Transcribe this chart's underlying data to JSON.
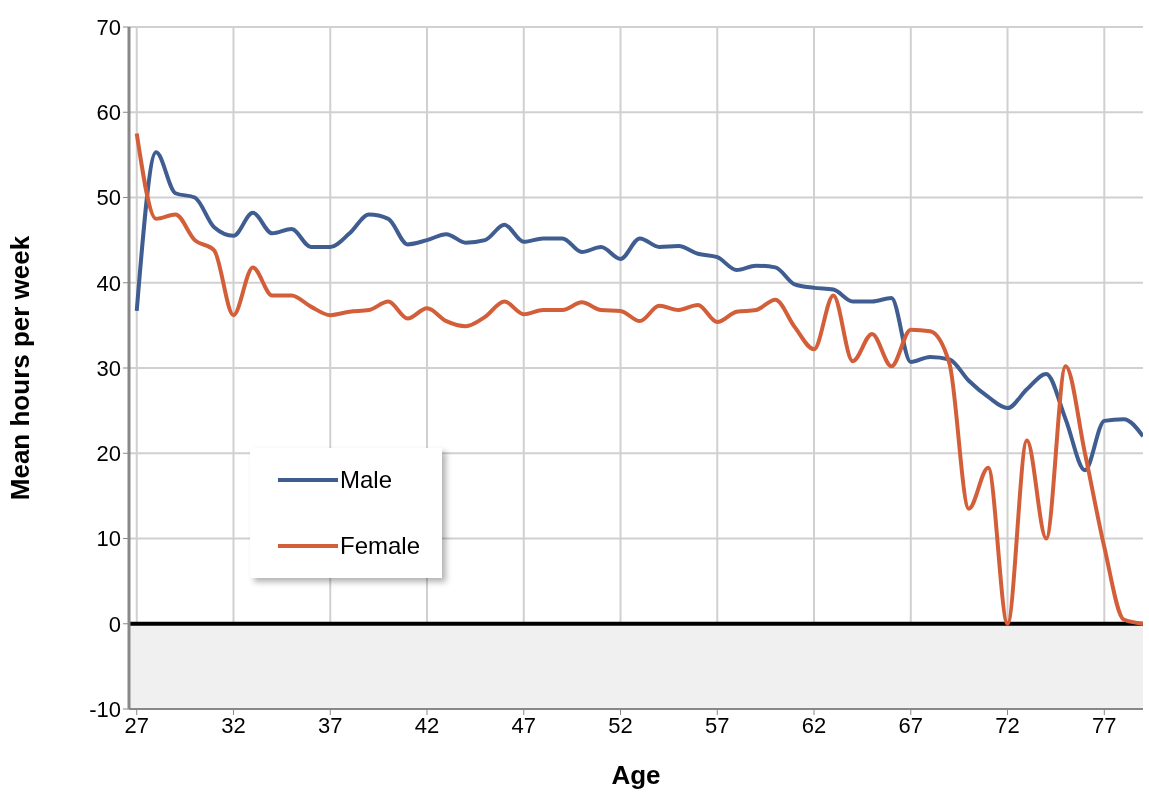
{
  "chart_data": {
    "type": "line",
    "xlabel": "Age",
    "ylabel": "Mean hours per week",
    "x": [
      27,
      28,
      29,
      30,
      31,
      32,
      33,
      34,
      35,
      36,
      37,
      38,
      39,
      40,
      41,
      42,
      43,
      44,
      45,
      46,
      47,
      48,
      49,
      50,
      51,
      52,
      53,
      54,
      55,
      56,
      57,
      58,
      59,
      60,
      61,
      62,
      63,
      64,
      65,
      66,
      67,
      68,
      69,
      70,
      71,
      72,
      73,
      74,
      75,
      76,
      77,
      78,
      79
    ],
    "series": [
      {
        "name": "Male",
        "color": "#3f5d91",
        "values": [
          36.7,
          55.3,
          50.5,
          50,
          46.5,
          45.5,
          48.2,
          45.8,
          46.3,
          44.2,
          44.2,
          45.8,
          48,
          47.5,
          44.5,
          45,
          45.7,
          44.7,
          45,
          46.8,
          44.8,
          45.2,
          45.2,
          43.6,
          44.2,
          42.8,
          45.2,
          44.2,
          44.3,
          43.4,
          43,
          41.5,
          42,
          41.8,
          39.8,
          39.4,
          39.2,
          37.8,
          37.8,
          38.2,
          30.7,
          31.3,
          31,
          28.5,
          26.6,
          25.3,
          27.5,
          29.3,
          24,
          18,
          23.8,
          24,
          22
        ]
      },
      {
        "name": "Female",
        "color": "#d35f3a",
        "values": [
          57.5,
          47.5,
          48,
          45,
          43.8,
          36.2,
          41.8,
          38.5,
          38.5,
          37.2,
          36.2,
          36.6,
          36.8,
          37.8,
          35.8,
          37,
          35.5,
          34.9,
          36,
          37.8,
          36.3,
          36.8,
          36.8,
          37.7,
          36.8,
          36.7,
          35.5,
          37.3,
          36.8,
          37.4,
          35.4,
          36.6,
          36.8,
          38,
          34.8,
          32.2,
          38.5,
          30.8,
          34,
          30.2,
          34.5,
          34.3,
          30.5,
          13.5,
          18.3,
          0,
          21.5,
          10,
          30.2,
          20,
          9,
          0.5,
          0
        ]
      }
    ],
    "xlim": [
      26.6,
      79
    ],
    "xticks": [
      27,
      32,
      37,
      42,
      47,
      52,
      57,
      62,
      67,
      72,
      77
    ],
    "ylim": [
      -10,
      70
    ],
    "yticks": [
      -10,
      0,
      10,
      20,
      30,
      40,
      50,
      60,
      70
    ],
    "ref_lines": [
      {
        "axis": "y",
        "value": 0,
        "color": "#000000"
      }
    ],
    "bands": [
      {
        "axis": "y",
        "from": -10,
        "to": 0,
        "color": "#f0f0f0"
      }
    ],
    "grid": true,
    "legend": "bottom left",
    "marker": "none",
    "line_style": "solid"
  }
}
